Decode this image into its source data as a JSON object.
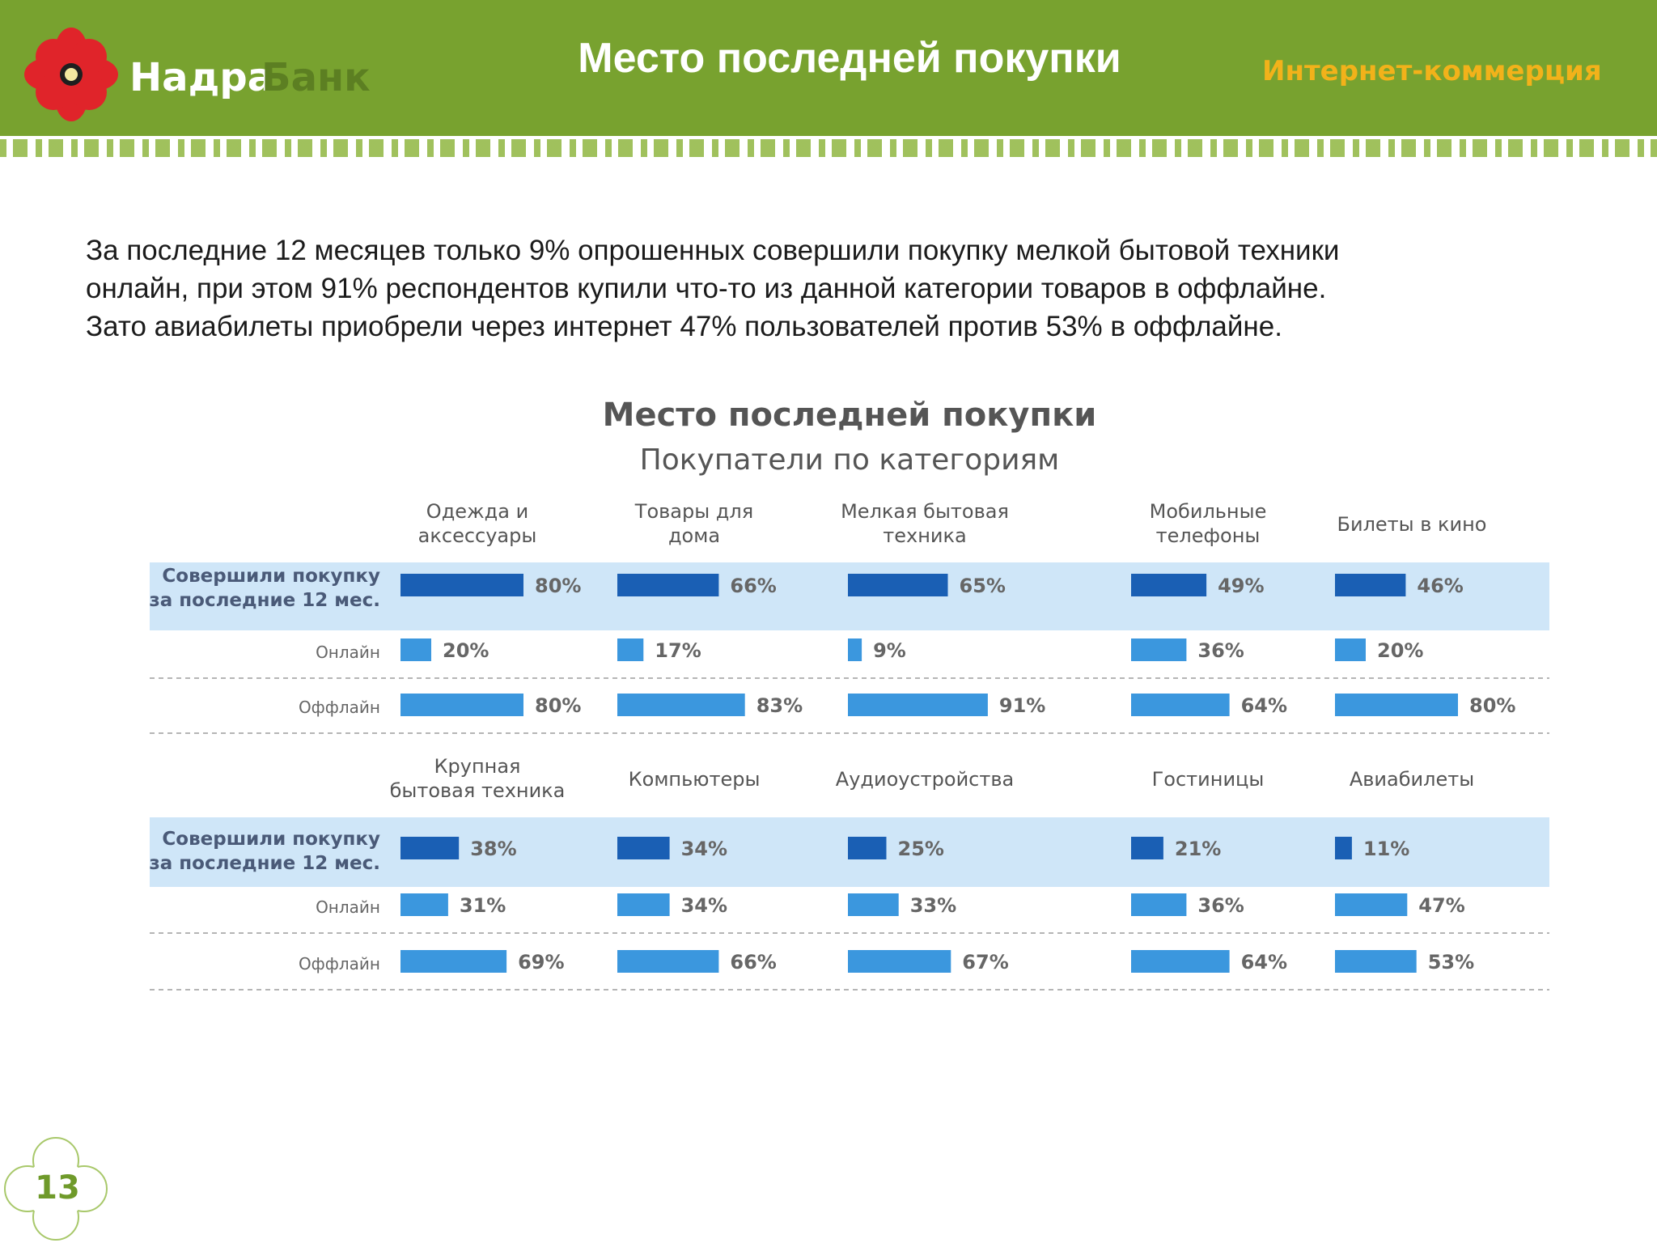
{
  "header": {
    "logo_word1": "Надра",
    "logo_word2": "Банк",
    "title": "Место последней покупки",
    "section": "Интернет-коммерция"
  },
  "intro": {
    "line1": "За последние 12 месяцев только 9% опрошенных совершили покупку мелкой бытовой техники",
    "line2": "онлайн, при этом 91% респондентов купили что-то из данной категории товаров в оффлайне.",
    "line3": "Зато авиабилеты приобрели через интернет 47% пользователей против 53% в оффлайне."
  },
  "colors": {
    "header_green": "#78a22f",
    "section_orange": "#f2b21a",
    "bar_dark_blue": "#1a5fb4",
    "bar_light_blue": "#3b97de",
    "row_highlight": "#cfe6f8"
  },
  "chart_data": {
    "type": "bar",
    "title": "Место последней покупки",
    "subtitle": "Покупатели по категориям",
    "row_labels": [
      "Совершили покупку за последние 12 мес.",
      "Онлайн",
      "Оффлайн"
    ],
    "panels": [
      {
        "categories": [
          "Одежда и аксессуары",
          "Товары для дома",
          "Мелкая бытовая техника",
          "Мобильные телефоны",
          "Билеты в кино"
        ],
        "series": [
          {
            "name": "Совершили покупку за последние 12 мес.",
            "values": [
              80,
              66,
              65,
              49,
              46
            ]
          },
          {
            "name": "Онлайн",
            "values": [
              20,
              17,
              9,
              36,
              20
            ]
          },
          {
            "name": "Оффлайн",
            "values": [
              80,
              83,
              91,
              64,
              80
            ]
          }
        ]
      },
      {
        "categories": [
          "Крупная бытовая техника",
          "Компьютеры",
          "Аудиоустройства",
          "Гостиницы",
          "Авиабилеты"
        ],
        "series": [
          {
            "name": "Совершили покупку за последние 12 мес.",
            "values": [
              38,
              34,
              25,
              21,
              11
            ]
          },
          {
            "name": "Онлайн",
            "values": [
              31,
              34,
              33,
              36,
              47
            ]
          },
          {
            "name": "Оффлайн",
            "values": [
              69,
              66,
              67,
              64,
              53
            ]
          }
        ]
      }
    ]
  },
  "footer": {
    "page_number": "13"
  }
}
